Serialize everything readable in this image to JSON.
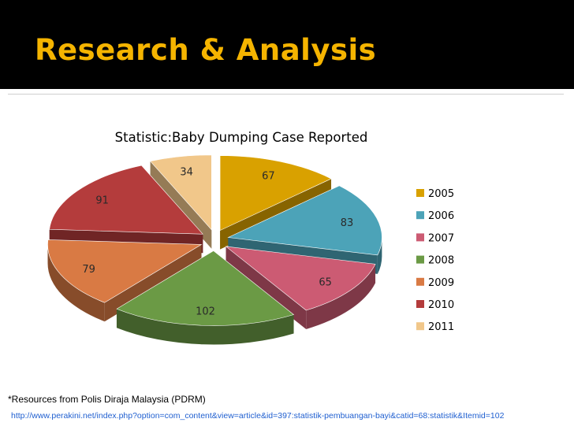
{
  "slide": {
    "title": "Research & Analysis",
    "title_color": "#f5b400",
    "header_bg": "#000000"
  },
  "chart_data": {
    "type": "pie",
    "title": "Statistic:Baby Dumping Case Reported",
    "categories": [
      "2005",
      "2006",
      "2007",
      "2008",
      "2009",
      "2010",
      "2011"
    ],
    "values": [
      67,
      83,
      65,
      102,
      79,
      91,
      34
    ],
    "colors": [
      "#d9a100",
      "#4ca3b8",
      "#cc5b73",
      "#6b9a45",
      "#d97a44",
      "#b43c3c",
      "#f1c78a"
    ],
    "legend_position": "right",
    "style": "3d-exploded"
  },
  "footer": {
    "source": "*Resources from Polis Diraja Malaysia (PDRM)",
    "link": "http://www.perakini.net/index.php?option=com_content&view=article&id=397:statistik-pembuangan-bayi&catid=68:statistik&Itemid=102"
  }
}
